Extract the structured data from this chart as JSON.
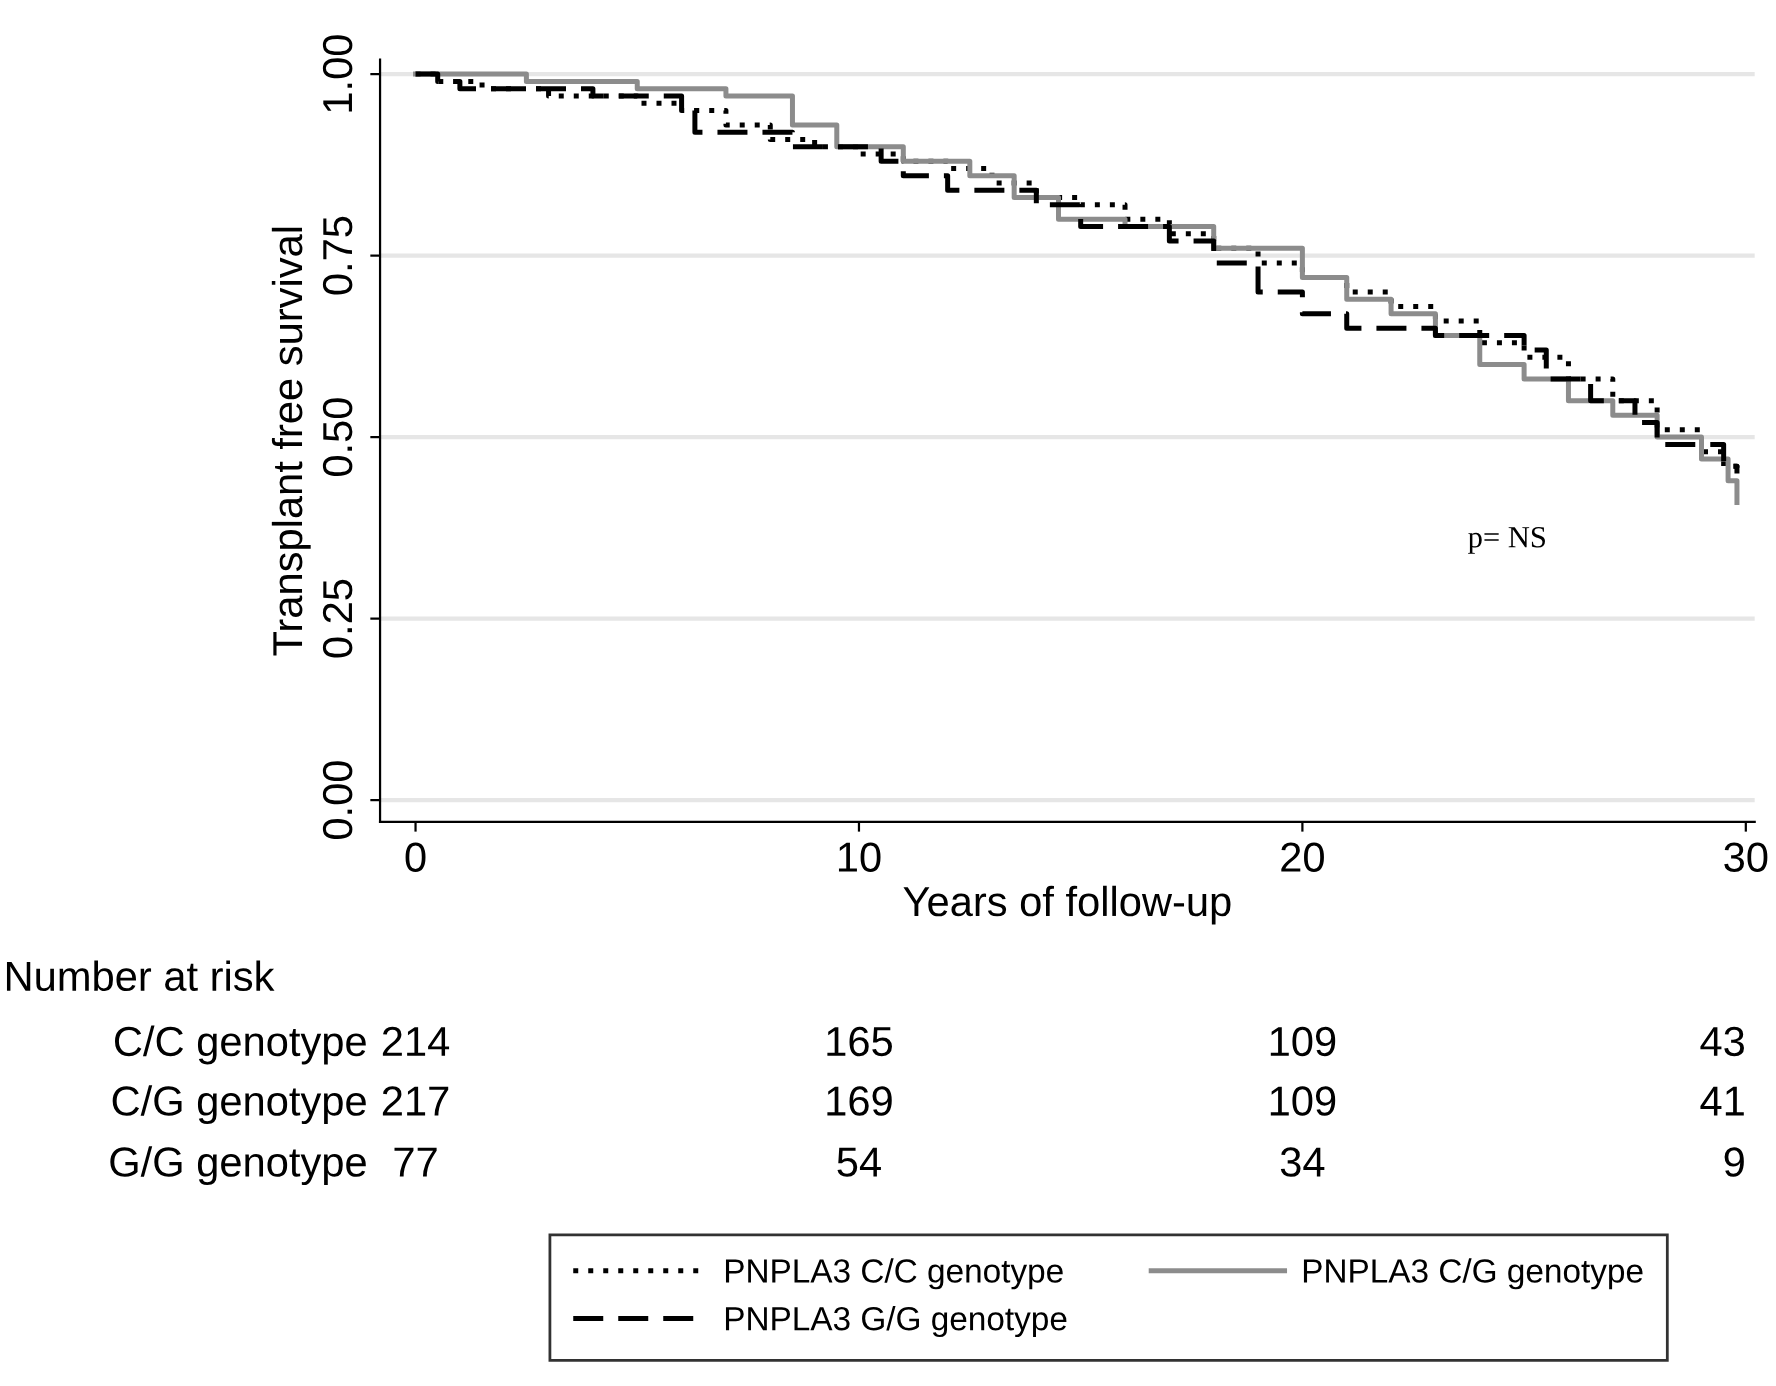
{
  "chart_data": {
    "type": "step",
    "xlabel": "Years of follow-up",
    "ylabel": "Transplant free survival",
    "xlim": [
      -0.8,
      30.2
    ],
    "xticks": [
      0,
      10,
      20,
      30
    ],
    "ylim": [
      -0.03,
      1.02
    ],
    "yticks": [
      {
        "value": 0,
        "label": "0.00"
      },
      {
        "value": 0.25,
        "label": "0.25"
      },
      {
        "value": 0.5,
        "label": "0.50"
      },
      {
        "value": 0.75,
        "label": "0.75"
      },
      {
        "value": 1,
        "label": "1.00"
      }
    ],
    "grid": "y",
    "legend": "bottom",
    "series": [
      {
        "name": "PNPLA3 C/C genotype",
        "color": "#000000",
        "line_style": "dotted",
        "x": [
          0,
          0.5,
          1.5,
          3,
          5,
          6,
          7,
          8,
          9,
          10,
          11,
          12,
          13,
          14,
          15,
          16,
          17,
          18,
          19,
          20,
          21,
          22,
          23,
          24,
          25,
          26,
          27,
          28,
          29,
          29.5,
          29.8
        ],
        "values": [
          1,
          0.99,
          0.98,
          0.97,
          0.96,
          0.95,
          0.93,
          0.91,
          0.9,
          0.89,
          0.88,
          0.87,
          0.85,
          0.83,
          0.82,
          0.8,
          0.78,
          0.76,
          0.74,
          0.72,
          0.7,
          0.68,
          0.66,
          0.63,
          0.61,
          0.58,
          0.55,
          0.51,
          0.48,
          0.46,
          0.45
        ]
      },
      {
        "name": "PNPLA3 C/G genotype",
        "color": "#8c8c8c",
        "line_style": "solid",
        "x": [
          0,
          2.5,
          5,
          7,
          8.5,
          9.5,
          11,
          12.5,
          13.5,
          14.5,
          16,
          18,
          20,
          21,
          22,
          23,
          24,
          25,
          26,
          27,
          28,
          29,
          29.6,
          29.8
        ],
        "values": [
          1,
          0.99,
          0.98,
          0.97,
          0.93,
          0.9,
          0.88,
          0.86,
          0.83,
          0.8,
          0.79,
          0.76,
          0.72,
          0.69,
          0.67,
          0.64,
          0.6,
          0.58,
          0.55,
          0.53,
          0.5,
          0.47,
          0.44,
          0.41
        ]
      },
      {
        "name": "PNPLA3 G/G genotype",
        "color": "#000000",
        "line_style": "dashed",
        "x": [
          0,
          0.5,
          1,
          4,
          6,
          6.3,
          8.5,
          10.5,
          11,
          12,
          14,
          15,
          17,
          18,
          19,
          20,
          21,
          23,
          25,
          25.5,
          26.5,
          27.5,
          28,
          29.5,
          29.8
        ],
        "values": [
          1,
          0.99,
          0.98,
          0.97,
          0.95,
          0.92,
          0.9,
          0.88,
          0.86,
          0.84,
          0.82,
          0.79,
          0.77,
          0.74,
          0.7,
          0.67,
          0.65,
          0.64,
          0.62,
          0.58,
          0.55,
          0.52,
          0.49,
          0.46,
          0.45
        ]
      }
    ],
    "annotations": [
      "p= NS",
      "Number at risk",
      "C/C genotype",
      "214",
      "165",
      "109",
      "43",
      "C/G genotype",
      "217",
      "169",
      "109",
      "41",
      "G/G genotype",
      "77",
      "54",
      "34",
      "9"
    ]
  }
}
